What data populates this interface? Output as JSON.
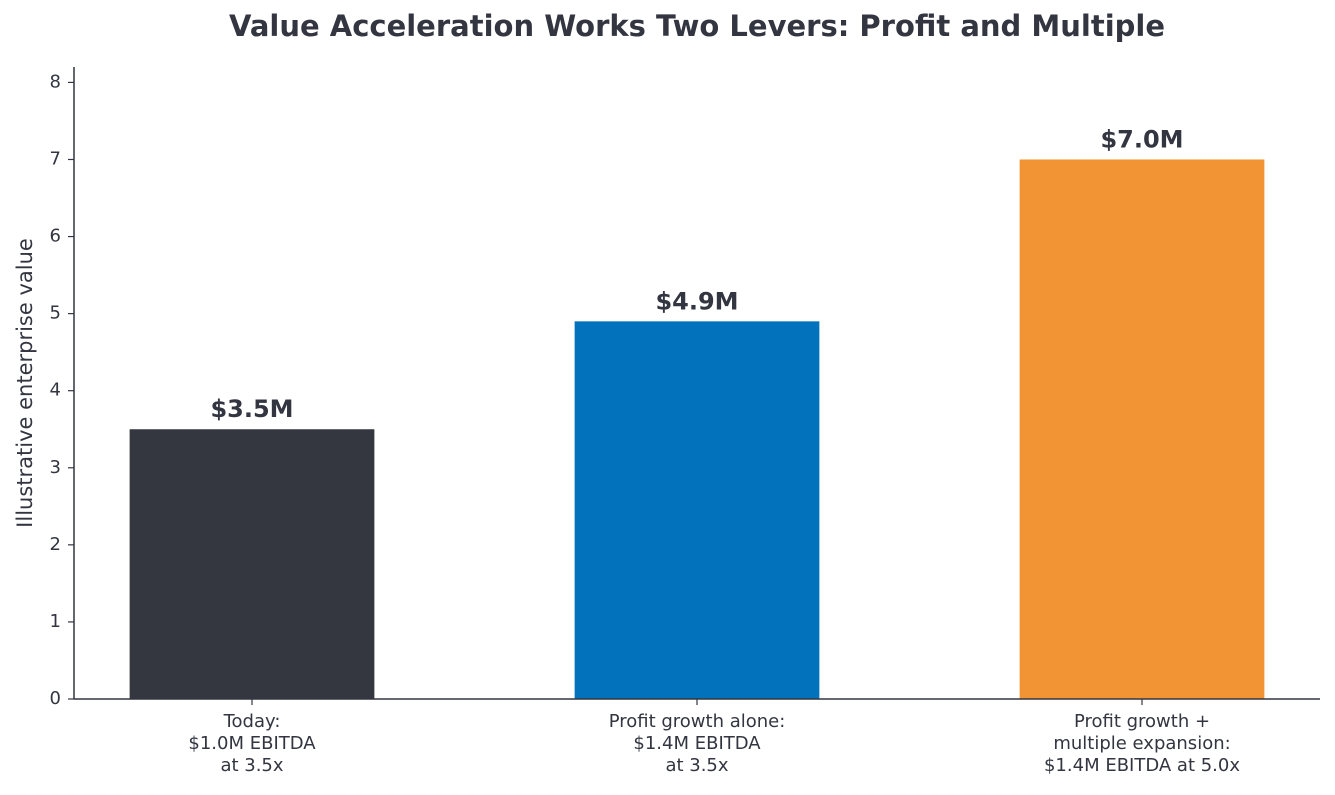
{
  "chart_data": {
    "type": "bar",
    "title": "Value Acceleration Works Two Levers: Profit and Multiple",
    "y_label": "Illustrative enterprise value",
    "categories": [
      "Today:\n$1.0M EBITDA\nat 3.5x",
      "Profit growth alone:\n$1.4M EBITDA\nat 3.5x",
      "Profit growth +\nmultiple expansion:\n$1.4M EBITDA at 5.0x"
    ],
    "values": [
      3.5,
      4.9,
      7.0
    ],
    "value_labels": [
      "$3.5M",
      "$4.9M",
      "$7.0M"
    ],
    "colors": [
      "#343740",
      "#0372bd",
      "#f29433"
    ],
    "ylim": [
      0,
      8.2
    ],
    "yticks": [
      0,
      1,
      2,
      3,
      4,
      5,
      6,
      7,
      8
    ],
    "grid": false
  }
}
